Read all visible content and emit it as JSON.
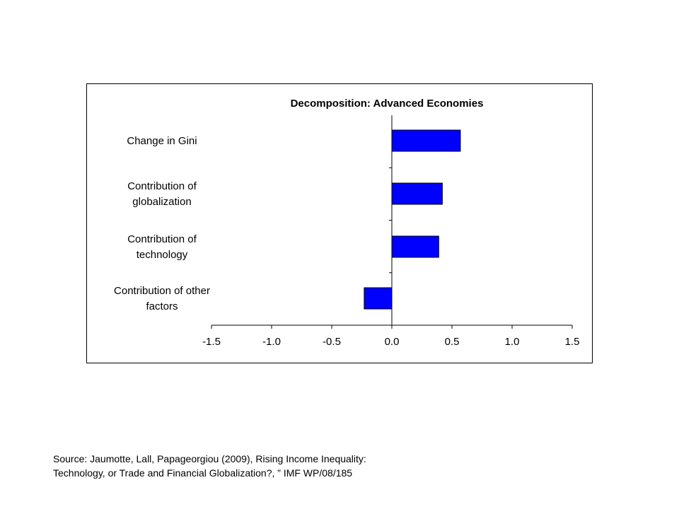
{
  "chart_data": {
    "type": "bar",
    "orientation": "horizontal",
    "title": "Decomposition: Advanced Economies",
    "categories": [
      [
        "Change in Gini"
      ],
      [
        "Contribution of",
        "globalization"
      ],
      [
        "Contribution of",
        "technology"
      ],
      [
        "Contribution of other",
        "factors"
      ]
    ],
    "values": [
      0.57,
      0.42,
      0.39,
      -0.23
    ],
    "xlim": [
      -1.5,
      1.5
    ],
    "xticks": [
      "-1.5",
      "-1.0",
      "-0.5",
      "0.0",
      "0.5",
      "1.0",
      "1.5"
    ],
    "bar_color": "#0000ff",
    "grid": false,
    "legend": "none"
  },
  "source": {
    "line1": "Source: Jaumotte, Lall, Papageorgiou (2009), Rising Income Inequality:",
    "line2": "Technology, or Trade and Financial Globalization?, ” IMF WP/08/185"
  }
}
